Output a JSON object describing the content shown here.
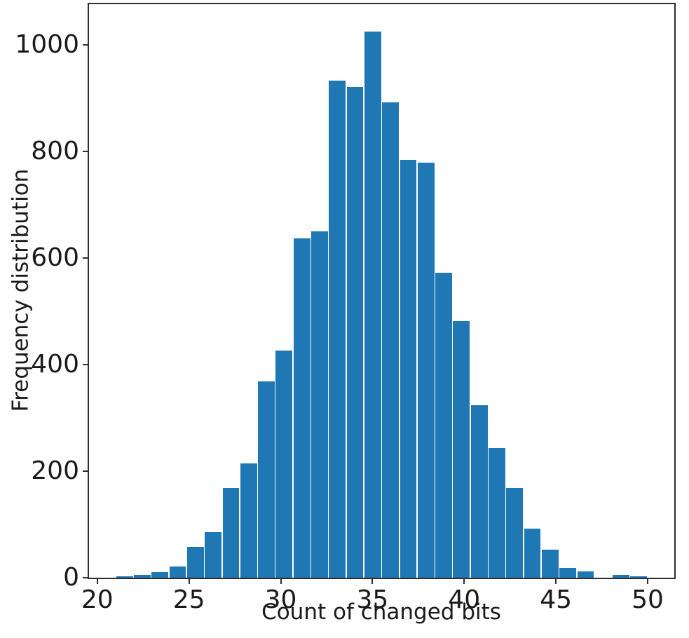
{
  "figure": {
    "background": "#ffffff"
  },
  "chart_data": {
    "type": "bar",
    "subtype": "histogram",
    "title": "",
    "xlabel": "Count of changed bits",
    "ylabel": "Frequency distribution",
    "bar_color": "#1f77b4",
    "bar_seam_color": "#ffffff",
    "axis_color": "#2e2e2e",
    "text_color": "#1a1a1a",
    "grid": false,
    "legend": null,
    "xlim": [
      19.55,
      51.45
    ],
    "ylim": [
      0,
      1076
    ],
    "x_ticks": [
      20,
      25,
      30,
      35,
      40,
      45,
      50
    ],
    "y_ticks": [
      0,
      200,
      400,
      600,
      800,
      1000
    ],
    "bin_start": 21,
    "bin_end": 50,
    "bin_count": 30,
    "bin_width": 0.96667,
    "bin_left_edges": [
      21.0,
      21.967,
      22.933,
      23.9,
      24.867,
      25.833,
      26.8,
      27.767,
      28.733,
      29.7,
      30.667,
      31.633,
      32.6,
      33.567,
      34.533,
      35.5,
      36.467,
      37.433,
      38.4,
      39.367,
      40.333,
      41.3,
      42.267,
      43.233,
      44.2,
      45.167,
      46.133,
      47.1,
      48.067,
      49.033
    ],
    "values": [
      3,
      5,
      11,
      21,
      58,
      85,
      169,
      215,
      368,
      426,
      637,
      650,
      932,
      921,
      1025,
      892,
      784,
      779,
      572,
      482,
      323,
      244,
      169,
      92,
      52,
      18,
      12,
      0,
      5,
      2
    ]
  }
}
